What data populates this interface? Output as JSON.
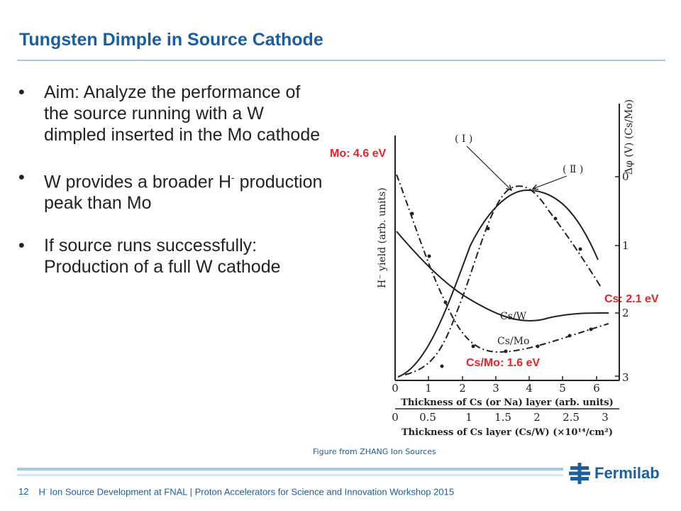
{
  "slide": {
    "title": "Tungsten Dimple in Source Cathode",
    "bullets": [
      {
        "text": "Aim: Analyze the performance of the source running with a W dimpled inserted in the Mo cathode"
      },
      {
        "text_a": "W provides a broader H",
        "sup": "-",
        "text_b": " production peak than Mo"
      },
      {
        "text": "If source runs successfully: Production of a full W cathode"
      }
    ],
    "bullet_symbol": "•"
  },
  "figure": {
    "caption": "Figure from ZHANG Ion Sources",
    "annotations": {
      "mo": "Mo: 4.6 eV",
      "cs": "Cs: 2.1 eV",
      "csmo_ev": "Cs/Mo: 1.6 eV"
    },
    "annotation_color": "#e8242a",
    "ylabel_left": "H⁻ yield (arb. units)",
    "ylabel_right": "Δφ (V)  (Cs/Mo)",
    "right_ticks": [
      "0",
      "1",
      "2",
      "3"
    ],
    "x_ticks_top": [
      "0",
      "1",
      "2",
      "3",
      "4",
      "5",
      "6"
    ],
    "xlabel_top": "Thickness of Cs (or Na) layer (arb. units)",
    "x_ticks_bottom": [
      "0",
      "0.5",
      "1",
      "1.5",
      "2",
      "2.5",
      "3"
    ],
    "xlabel_bottom": "Thickness of Cs layer (Cs/W) (×10¹⁴/cm²)",
    "curve_labels": {
      "c1": "( I )",
      "c2": "( Ⅱ )",
      "cs_w": "Cs/W",
      "cs_mo": "Cs/Mo"
    }
  },
  "footer": {
    "page": "12",
    "text_a": "H",
    "sup": "-",
    "text_b": " Ion Source Development at FNAL | Proton Accelerators for Science and Innovation Workshop 2015"
  },
  "logo": {
    "name": "Fermilab",
    "icon": "fermilab-logo-icon"
  }
}
